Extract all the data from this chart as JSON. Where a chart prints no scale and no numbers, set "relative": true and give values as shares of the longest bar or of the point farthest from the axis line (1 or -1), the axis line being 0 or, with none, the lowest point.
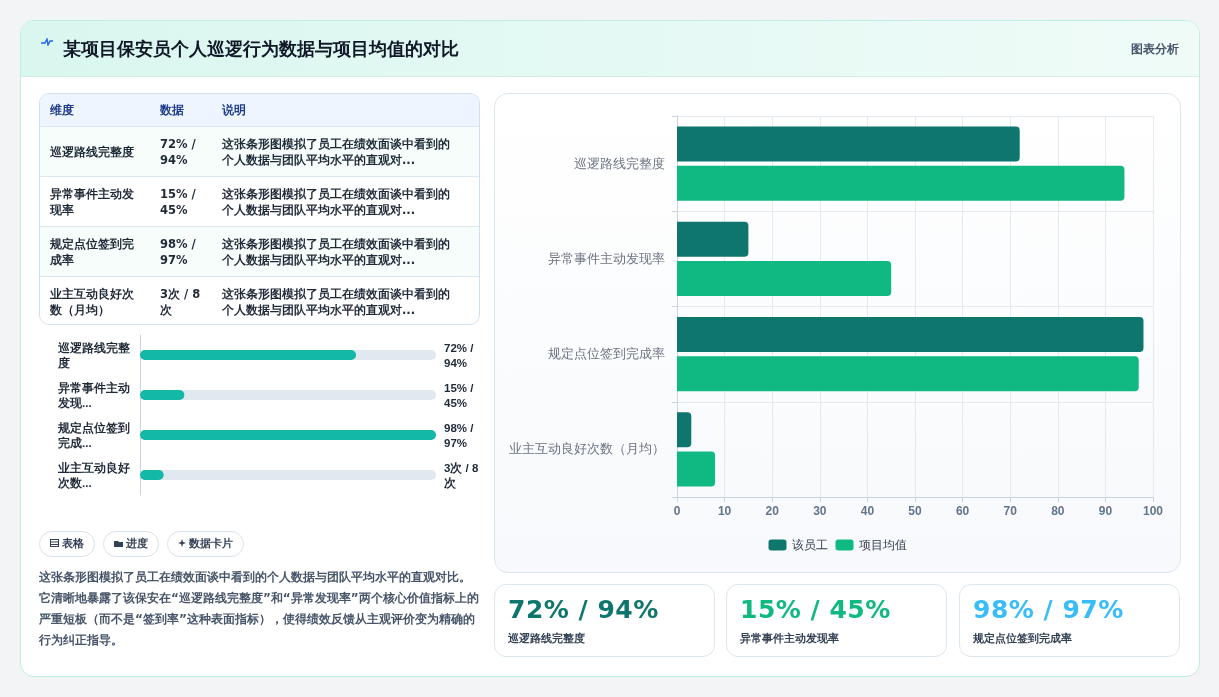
{
  "chart_data": [
    {
      "type": "other",
      "title": "某项目保安员个人巡逻行为数据与项目均值的对比",
      "annotations": [
        "图表分析"
      ]
    },
    {
      "type": "other",
      "annotations": [
        "维度",
        "数据",
        "说明",
        "巡逻路线完整度",
        "72% / 94%",
        "这张条形图模拟了员工在绩效面谈中看到的个人数据与团队平均水平的直观对...",
        "异常事件主动发现率",
        "15% / 45%",
        "这张条形图模拟了员工在绩效面谈中看到的个人数据与团队平均水平的直观对...",
        "规定点位签到完成率",
        "98% / 97%",
        "这张条形图模拟了员工在绩效面谈中看到的个人数据与团队平均水平的直观对...",
        "业主互动良好次数（月均）",
        "3次 / 8次",
        "这张条形图模拟了员工在绩效面谈中看到的个人数据与团队平均水平的直观对..."
      ]
    },
    {
      "type": "bar",
      "orientation": "horizontal",
      "relative": true,
      "categories": [
        "巡逻路线完整度",
        "异常事件主动发现...",
        "规定点位签到完成...",
        "业主互动良好次数..."
      ],
      "values": [
        0.73,
        0.15,
        1,
        0.08
      ],
      "annotations": [
        "72% / 94%",
        "15% / 45%",
        "98% / 97%",
        "3次 / 8次"
      ],
      "color": "#14b8a6"
    },
    {
      "type": "other",
      "annotations": [
        "表格",
        "进度",
        "数据卡片",
        "这张条形图模拟了员工在绩效面谈中看到的个人数据与团队平均水平的直观对比。它清晰地暴露了该保安在“巡逻路线完整度”和“异常发现率”两个核心价值指标上的严重短板（而不是“签到率”这种表面指标），使得绩效反馈从主观评价变为精确的行为纠正指导。"
      ]
    },
    {
      "type": "bar",
      "orientation": "horizontal",
      "categories": [
        "巡逻路线完整度",
        "异常事件主动发现率",
        "规定点位签到完成率",
        "业主互动良好次数（月均）"
      ],
      "series": [
        {
          "name": "该员工",
          "color": "#0f766e",
          "values": [
            72,
            15,
            98,
            3
          ]
        },
        {
          "name": "项目均值",
          "color": "#10b981",
          "values": [
            94,
            45,
            97,
            8
          ]
        }
      ],
      "xlim": [
        0,
        100
      ],
      "xticks": [
        0,
        10,
        20,
        30,
        40,
        50,
        60,
        70,
        80,
        90,
        100
      ],
      "grid": true,
      "legend": "bottom"
    },
    {
      "type": "other",
      "title": "72% / 94%",
      "color": "#0f766e",
      "annotations": [
        "巡逻路线完整度"
      ]
    },
    {
      "type": "other",
      "title": "15% / 45%",
      "color": "#10b981",
      "annotations": [
        "异常事件主动发现率"
      ]
    },
    {
      "type": "other",
      "title": "98% / 97%",
      "color": "#38bdf8",
      "annotations": [
        "规定点位签到完成率"
      ]
    }
  ]
}
